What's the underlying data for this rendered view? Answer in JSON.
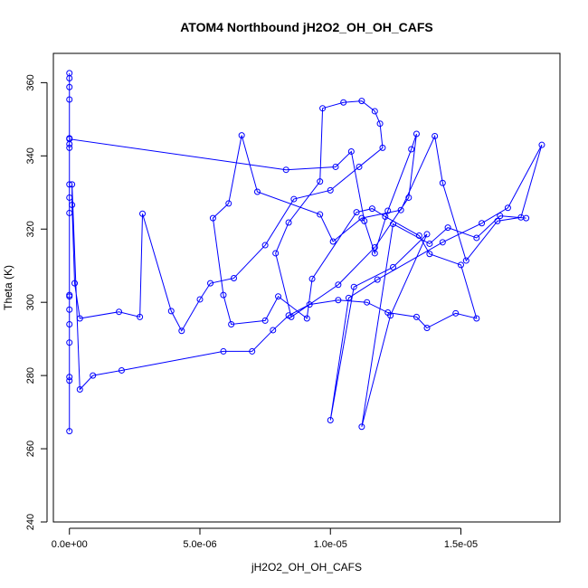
{
  "chart_data": {
    "type": "line",
    "title": "ATOM4 Northbound jH2O2_OH_OH_CAFS",
    "xlabel": "jH2O2_OH_OH_CAFS",
    "ylabel": "Theta (K)",
    "xlim": [
      -6.15e-07,
      1.8795e-05
    ],
    "ylim": [
      240,
      368
    ],
    "xticks": [
      0,
      5e-06,
      1e-05,
      1.5e-05
    ],
    "xtick_labels": [
      "0.0e+00",
      "5.0e-06",
      "1.0e-05",
      "1.5e-05"
    ],
    "yticks": [
      240,
      260,
      280,
      300,
      320,
      340,
      360
    ],
    "ytick_labels": [
      "240",
      "260",
      "280",
      "300",
      "320",
      "340",
      "360"
    ],
    "grid": false,
    "legend": "none",
    "colors": {
      "series": "#0000ff",
      "frame": "#000000"
    },
    "series": [
      {
        "marker": "open-circle",
        "points": [
          [
            0.0,
            264.8
          ],
          [
            0.0,
            278.6
          ],
          [
            0.0,
            279.6
          ],
          [
            0.0,
            289.0
          ],
          [
            0.0,
            294.0
          ],
          [
            0.0,
            298.0
          ],
          [
            0.0,
            301.6
          ],
          [
            0.0,
            302.0
          ],
          [
            0.0,
            324.4
          ],
          [
            0.0,
            328.6
          ],
          [
            0.0,
            332.2
          ],
          [
            0.0,
            342.2
          ],
          [
            0.0,
            343.2
          ],
          [
            0.0,
            344.8
          ],
          [
            0.0,
            355.4
          ],
          [
            0.0,
            358.8
          ],
          [
            0.0,
            361.2
          ],
          [
            0.0,
            362.6
          ],
          [
            0.0,
            344.6
          ],
          [
            8.3e-06,
            336.2
          ],
          [
            1.02e-05,
            337.0
          ],
          [
            1.08e-05,
            341.2
          ],
          [
            1.13e-05,
            322.2
          ],
          [
            1.17e-05,
            313.4
          ],
          [
            1.22e-05,
            325.0
          ],
          [
            1.31e-05,
            341.8
          ],
          [
            1.33e-05,
            346.0
          ],
          [
            1.3e-05,
            328.6
          ],
          [
            1.17e-05,
            315.0
          ],
          [
            1.03e-05,
            304.8
          ],
          [
            8.5e-06,
            296.0
          ],
          [
            7.9e-06,
            313.4
          ],
          [
            8.4e-06,
            321.8
          ],
          [
            9.6e-06,
            333.0
          ],
          [
            9.7e-06,
            353.0
          ],
          [
            1.05e-05,
            354.6
          ],
          [
            1.12e-05,
            355.0
          ],
          [
            1.17e-05,
            352.2
          ],
          [
            1.19e-05,
            348.8
          ],
          [
            1.2e-05,
            342.2
          ],
          [
            1.11e-05,
            337.0
          ],
          [
            1e-05,
            330.6
          ],
          [
            8.6e-06,
            328.2
          ],
          [
            7.5e-06,
            315.6
          ],
          [
            6.3e-06,
            306.6
          ],
          [
            5.4e-06,
            305.2
          ],
          [
            5e-06,
            300.8
          ],
          [
            4.3e-06,
            292.2
          ],
          [
            3.9e-06,
            297.6
          ],
          [
            2.8e-06,
            324.2
          ],
          [
            2.7e-06,
            296.0
          ],
          [
            1.9e-06,
            297.4
          ],
          [
            4e-07,
            295.6
          ],
          [
            2e-07,
            305.2
          ],
          [
            1e-07,
            326.6
          ],
          [
            1e-07,
            332.2
          ],
          [
            4e-07,
            276.2
          ],
          [
            9e-07,
            280.0
          ],
          [
            2e-06,
            281.4
          ],
          [
            5.9e-06,
            286.6
          ],
          [
            7e-06,
            286.6
          ],
          [
            7.8e-06,
            292.4
          ],
          [
            8.4e-06,
            296.4
          ],
          [
            9.2e-06,
            299.4
          ],
          [
            1.03e-05,
            300.6
          ],
          [
            1.14e-05,
            300.0
          ],
          [
            1.22e-05,
            297.2
          ],
          [
            1.33e-05,
            296.0
          ],
          [
            1.37e-05,
            293.0
          ],
          [
            1.48e-05,
            297.0
          ],
          [
            1.56e-05,
            295.6
          ],
          [
            1.5e-05,
            310.2
          ],
          [
            1.38e-05,
            313.2
          ],
          [
            1.34e-05,
            318.2
          ],
          [
            1.21e-05,
            323.4
          ],
          [
            1.16e-05,
            325.6
          ],
          [
            1.1e-05,
            324.6
          ],
          [
            9.3e-06,
            306.4
          ],
          [
            9.1e-06,
            295.6
          ],
          [
            8e-06,
            301.6
          ],
          [
            7.5e-06,
            295.0
          ],
          [
            6.2e-06,
            294.0
          ],
          [
            5.9e-06,
            302.0
          ],
          [
            5.5e-06,
            323.0
          ],
          [
            6.1e-06,
            327.0
          ],
          [
            6.6e-06,
            345.6
          ],
          [
            7.2e-06,
            330.2
          ],
          [
            9.6e-06,
            324.0
          ],
          [
            1.01e-05,
            316.6
          ],
          [
            1.12e-05,
            323.0
          ],
          [
            1.27e-05,
            325.2
          ],
          [
            1.4e-05,
            345.4
          ],
          [
            1.43e-05,
            332.6
          ],
          [
            1.52e-05,
            311.4
          ],
          [
            1.64e-05,
            322.2
          ],
          [
            1.73e-05,
            323.2
          ],
          [
            1.81e-05,
            343.0
          ],
          [
            1.68e-05,
            325.8
          ],
          [
            1.58e-05,
            321.6
          ],
          [
            1.43e-05,
            316.4
          ],
          [
            1.18e-05,
            306.2
          ],
          [
            1.07e-05,
            301.2
          ],
          [
            1e-05,
            267.8
          ],
          [
            1.09e-05,
            304.2
          ],
          [
            1.24e-05,
            309.6
          ],
          [
            1.37e-05,
            318.6
          ],
          [
            1.23e-05,
            296.4
          ],
          [
            1.12e-05,
            266.0
          ],
          [
            1.24e-05,
            321.4
          ],
          [
            1.38e-05,
            316.0
          ],
          [
            1.45e-05,
            320.4
          ],
          [
            1.56e-05,
            317.6
          ],
          [
            1.65e-05,
            323.6
          ],
          [
            1.75e-05,
            323.0
          ]
        ]
      }
    ]
  }
}
